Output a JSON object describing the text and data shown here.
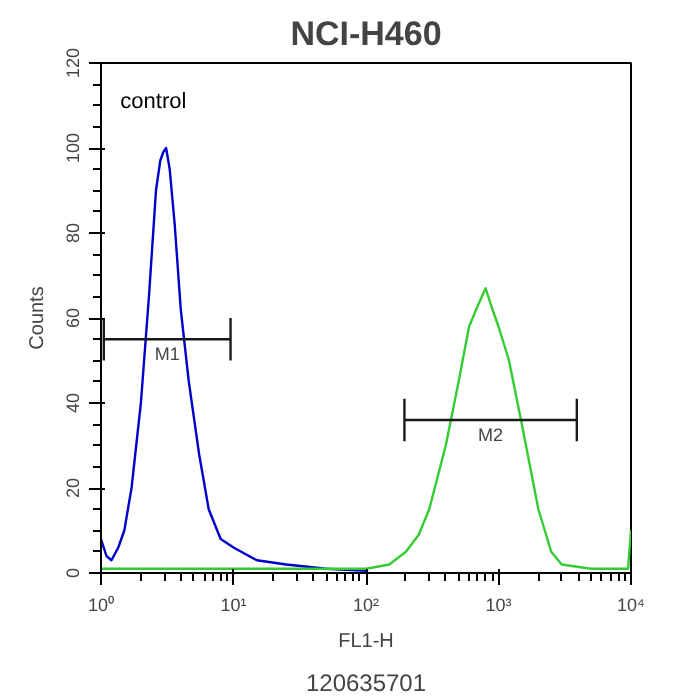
{
  "chart_data": {
    "type": "line",
    "title": "NCI-H460",
    "xlabel": "FL1-H",
    "ylabel": "Counts",
    "log": "x",
    "xlim": [
      1,
      10000
    ],
    "ylim": [
      0,
      120
    ],
    "xticks": [
      {
        "value": 1,
        "label": "10⁰"
      },
      {
        "value": 10,
        "label": "10¹"
      },
      {
        "value": 100,
        "label": "10²"
      },
      {
        "value": 1000,
        "label": "10³"
      },
      {
        "value": 10000,
        "label": "10⁴"
      }
    ],
    "yticks": [
      0,
      20,
      40,
      60,
      80,
      100,
      120
    ],
    "grid": false,
    "series": [
      {
        "name": "control",
        "color": "#0000cc",
        "x": [
          1,
          1.1,
          1.2,
          1.35,
          1.5,
          1.7,
          2,
          2.3,
          2.6,
          2.8,
          2.95,
          3.1,
          3.3,
          3.6,
          4,
          4.6,
          5.5,
          6.5,
          8,
          10,
          15,
          25,
          50,
          100
        ],
        "values": [
          8,
          4,
          3,
          6,
          10,
          20,
          40,
          65,
          90,
          97,
          99,
          100,
          95,
          82,
          62,
          45,
          28,
          15,
          8,
          6,
          3,
          2,
          1,
          0.5
        ]
      },
      {
        "color": "#33cc33",
        "x": [
          1,
          10,
          50,
          100,
          150,
          200,
          250,
          300,
          400,
          500,
          600,
          700,
          800,
          900,
          1000,
          1200,
          1500,
          2000,
          2500,
          3000,
          5000,
          9500,
          10000
        ],
        "values": [
          1,
          1,
          1,
          1,
          2,
          5,
          9,
          15,
          30,
          45,
          58,
          63,
          67,
          62,
          58,
          50,
          35,
          15,
          5,
          2,
          1,
          1,
          10
        ]
      },
      {
        "color": "#1a1a1a",
        "x": [
          1.05,
          9.5
        ],
        "values": [
          55,
          55
        ],
        "errors": [
          5,
          5
        ]
      },
      {
        "color": "#1a1a1a",
        "x": [
          195,
          3900
        ],
        "values": [
          36,
          36
        ],
        "errors": [
          5,
          5
        ]
      }
    ],
    "annotations": [
      "M1",
      "M2",
      "120635701"
    ]
  }
}
